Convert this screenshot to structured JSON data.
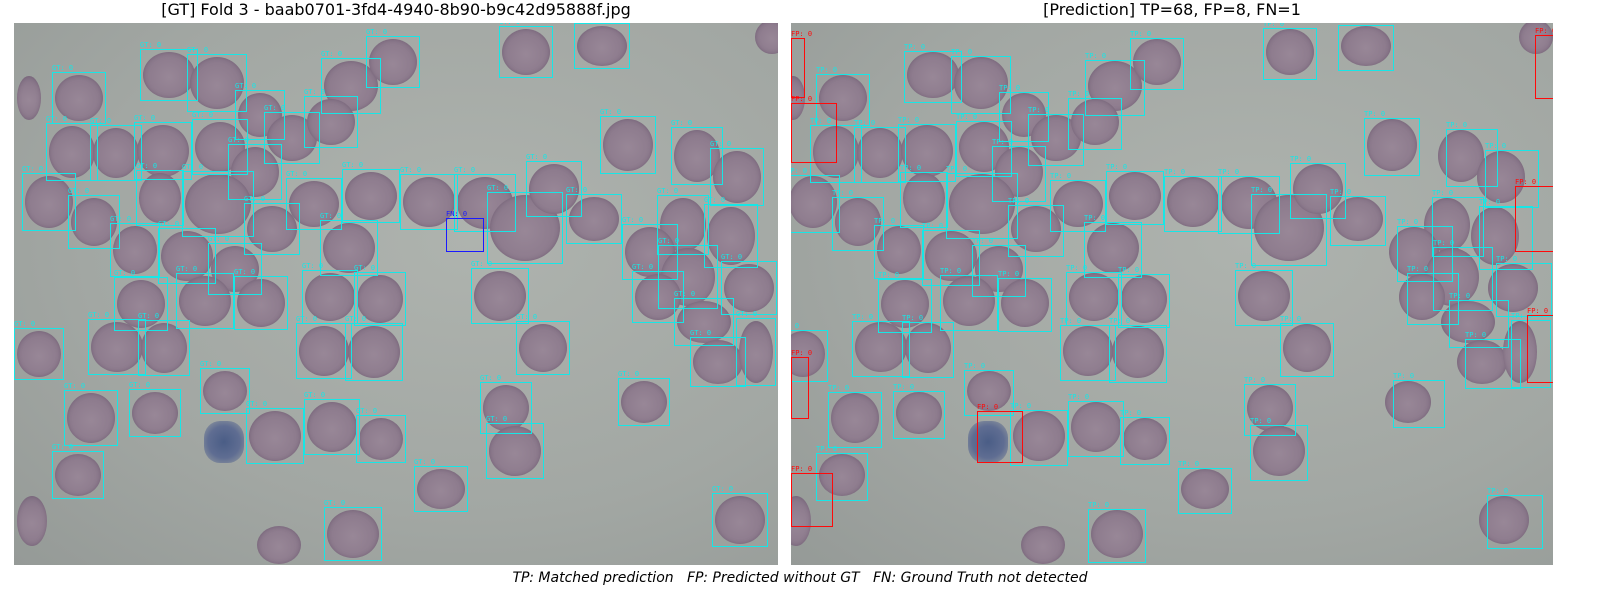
{
  "left_title": "[GT] Fold 3 - baab0701-3fd4-4940-8b90-b9c42d95888f.jpg",
  "right_title": "[Prediction] TP=68, FP=8, FN=1",
  "legend": "TP: Matched prediction   FP: Predicted without GT   FN: Ground Truth not detected",
  "colors": {
    "match": "#17e6e6",
    "false_positive": "#ff0a0a",
    "false_negative": "#1a1aff"
  },
  "labels": {
    "gt": "GT: 0",
    "tp": "TP: 0",
    "fp": "FP: 0",
    "fn": "FN: 0"
  },
  "counts": {
    "tp": 68,
    "fp": 8,
    "fn": 1
  }
}
